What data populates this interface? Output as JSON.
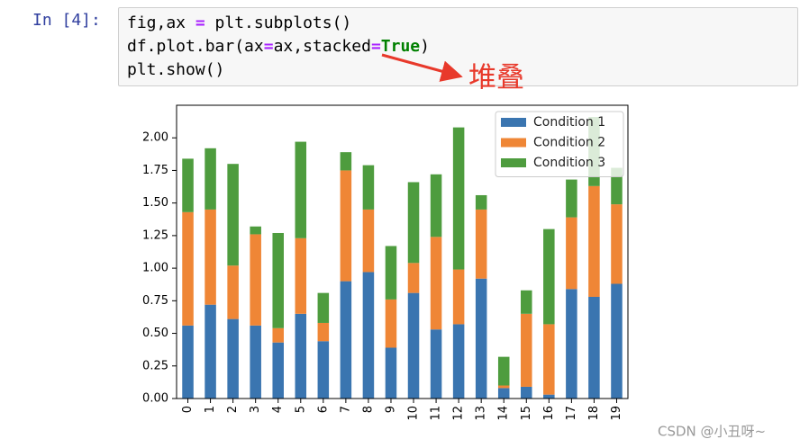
{
  "cell": {
    "prompt": "In [4]:",
    "code_lines": [
      [
        "fig,ax ",
        "=",
        " plt.subplots()"
      ],
      [
        "df.plot.bar(ax",
        "=",
        "ax,stacked",
        "=",
        "True",
        ")"
      ],
      [
        "plt.show()"
      ]
    ]
  },
  "annotation": "堆叠",
  "watermark": "CSDN @小丑呀~",
  "chart_data": {
    "type": "stacked_bar",
    "categories": [
      "0",
      "1",
      "2",
      "3",
      "4",
      "5",
      "6",
      "7",
      "8",
      "9",
      "10",
      "11",
      "12",
      "13",
      "14",
      "15",
      "16",
      "17",
      "18",
      "19"
    ],
    "series": [
      {
        "name": "Condition 1",
        "color": "#3a75b0",
        "values": [
          0.56,
          0.72,
          0.61,
          0.56,
          0.43,
          0.65,
          0.44,
          0.9,
          0.97,
          0.39,
          0.81,
          0.53,
          0.57,
          0.92,
          0.08,
          0.09,
          0.03,
          0.84,
          0.78,
          0.88
        ]
      },
      {
        "name": "Condition 2",
        "color": "#ef8636",
        "values": [
          0.87,
          0.73,
          0.41,
          0.7,
          0.11,
          0.58,
          0.14,
          0.85,
          0.48,
          0.37,
          0.23,
          0.71,
          0.42,
          0.53,
          0.02,
          0.56,
          0.54,
          0.55,
          0.85,
          0.61
        ]
      },
      {
        "name": "Condition 3",
        "color": "#4e9c3e",
        "values": [
          0.41,
          0.47,
          0.78,
          0.06,
          0.73,
          0.74,
          0.23,
          0.14,
          0.34,
          0.41,
          0.62,
          0.48,
          1.09,
          0.11,
          0.22,
          0.18,
          0.73,
          0.29,
          0.53,
          0.28
        ]
      }
    ],
    "ylim": [
      0,
      2.25
    ],
    "yticks": [
      {
        "value": 0,
        "label": "0.00"
      },
      {
        "value": 0.25,
        "label": "0.25"
      },
      {
        "value": 0.5,
        "label": "0.50"
      },
      {
        "value": 0.75,
        "label": "0.75"
      },
      {
        "value": 1,
        "label": "1.00"
      },
      {
        "value": 1.25,
        "label": "1.25"
      },
      {
        "value": 1.5,
        "label": "1.50"
      },
      {
        "value": 1.75,
        "label": "1.75"
      },
      {
        "value": 2,
        "label": "2.00"
      }
    ],
    "legend": "upper right"
  }
}
